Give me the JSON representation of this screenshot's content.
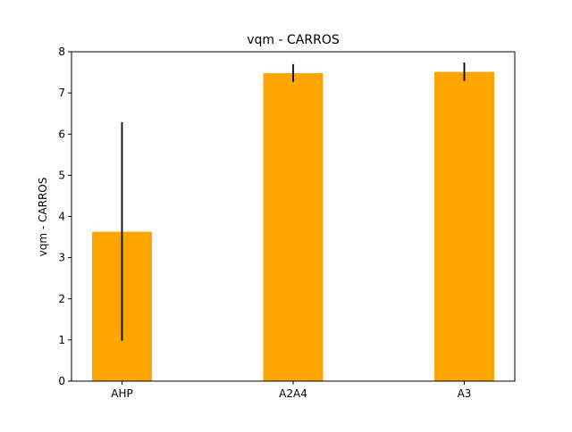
{
  "chart_data": {
    "type": "bar",
    "title": "vqm - CARROS",
    "xlabel": "",
    "ylabel": "vqm - CARROS",
    "categories": [
      "AHP",
      "A2A4",
      "A3"
    ],
    "values": [
      3.63,
      7.48,
      7.51
    ],
    "error_low": [
      0.98,
      7.27,
      7.29
    ],
    "error_high": [
      6.29,
      7.7,
      7.74
    ],
    "ylim": [
      0,
      8
    ],
    "yticks": [
      "0",
      "1",
      "2",
      "3",
      "4",
      "5",
      "6",
      "7",
      "8"
    ],
    "grid": false,
    "legend": "none",
    "bar_color": "#ffa500",
    "error_color": "#000000"
  }
}
